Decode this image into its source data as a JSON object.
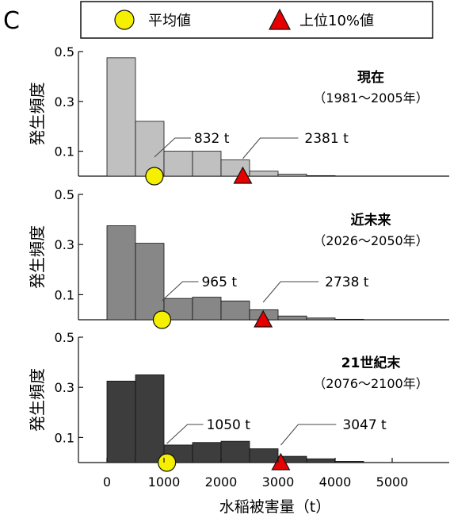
{
  "panel_label": "C",
  "legend": {
    "mean_label": "平均値",
    "top10_label": "上位10%値"
  },
  "colors": {
    "mean": "#f4f000",
    "top10": "#e60000"
  },
  "chart_data": {
    "type": "bar",
    "xlabel": "水稲被害量（t）",
    "xlim": [
      -500,
      6000
    ],
    "xticks": [
      0,
      1000,
      2000,
      3000,
      4000,
      5000
    ],
    "bin_width": 500,
    "ylim": [
      0,
      0.5
    ],
    "yticks": [
      0.1,
      0.3,
      0.5
    ],
    "panels": [
      {
        "title": "現在",
        "period": "（1981～2005年）",
        "ylabel": "発生頻度",
        "color": "#c0c0c0",
        "bins": [
          0,
          500,
          1000,
          1500,
          2000,
          2500,
          3000,
          3500
        ],
        "values": [
          0.475,
          0.22,
          0.1,
          0.1,
          0.065,
          0.02,
          0.008,
          0.002
        ],
        "mean": 832,
        "mean_label": "832 t",
        "top10": 2381,
        "top10_label": "2381 t"
      },
      {
        "title": "近未来",
        "period": "（2026～2050年）",
        "ylabel": "発生頻度",
        "color": "#878787",
        "bins": [
          0,
          500,
          1000,
          1500,
          2000,
          2500,
          3000,
          3500,
          4000
        ],
        "values": [
          0.375,
          0.305,
          0.085,
          0.09,
          0.075,
          0.04,
          0.015,
          0.007,
          0.002
        ],
        "mean": 965,
        "mean_label": "965 t",
        "top10": 2738,
        "top10_label": "2738 t"
      },
      {
        "title": "21世紀末",
        "period": "（2076～2100年）",
        "ylabel": "発生頻度",
        "color": "#3d3d3d",
        "bins": [
          0,
          500,
          1000,
          1500,
          2000,
          2500,
          3000,
          3500,
          4000
        ],
        "values": [
          0.325,
          0.35,
          0.07,
          0.08,
          0.085,
          0.055,
          0.025,
          0.015,
          0.005
        ],
        "mean": 1050,
        "mean_label": "1050 t",
        "top10": 3047,
        "top10_label": "3047 t"
      }
    ]
  }
}
